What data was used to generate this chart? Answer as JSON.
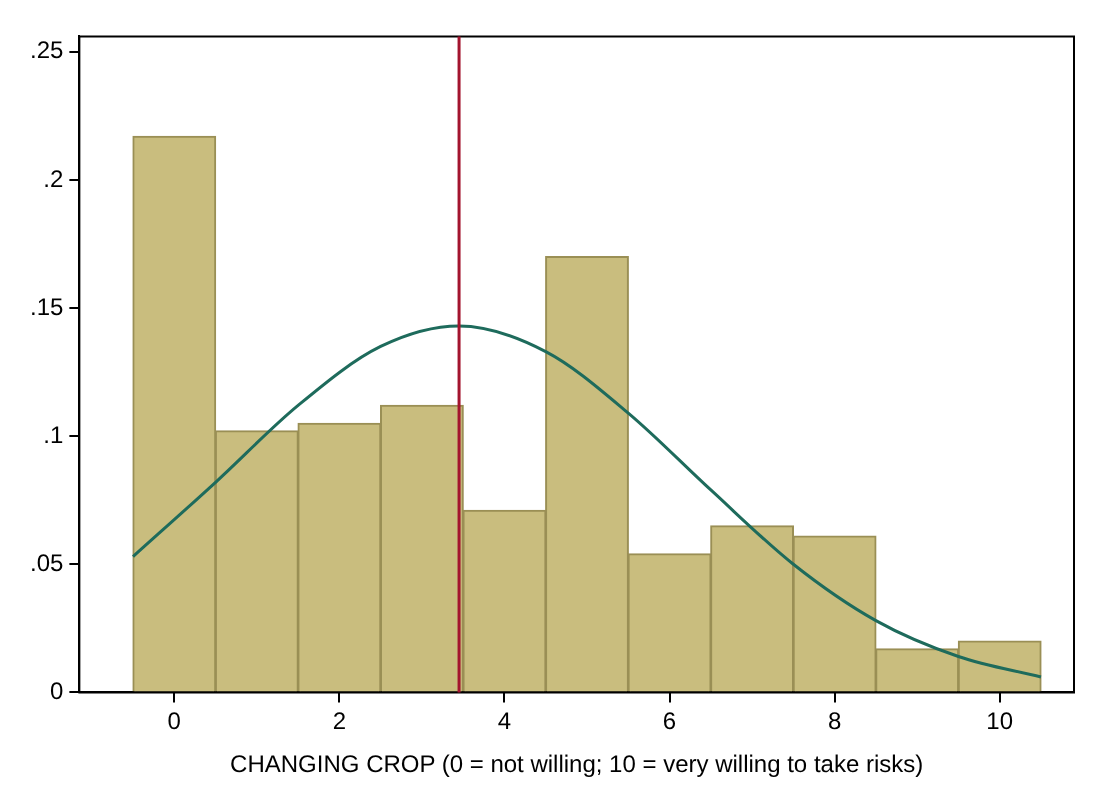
{
  "chart_data": {
    "type": "histogram",
    "xlabel": "CHANGING CROP (0 = not willing; 10 = very willing to take risks)",
    "bins": [
      -0.5,
      0.5,
      1.5,
      2.5,
      3.5,
      4.5,
      5.5,
      6.5,
      7.5,
      8.5,
      9.5,
      10.5
    ],
    "values": [
      0.217,
      0.102,
      0.105,
      0.112,
      0.071,
      0.17,
      0.054,
      0.065,
      0.061,
      0.017,
      0.02
    ],
    "color": "#c9bd7e",
    "series": [
      {
        "type": "line",
        "color": "#1e6b5c",
        "x": [
          -0.5,
          0.5,
          1.5,
          2.5,
          3.45,
          4.5,
          5.5,
          6.5,
          7.5,
          8.5,
          9.5,
          10.5
        ],
        "values": [
          0.053,
          0.082,
          0.112,
          0.135,
          0.143,
          0.133,
          0.109,
          0.079,
          0.05,
          0.028,
          0.014,
          0.006
        ]
      }
    ],
    "ref_lines": [
      {
        "axis": "x",
        "value": 3.45,
        "color": "#a3142e"
      }
    ],
    "xlim": [
      -1.15,
      10.9
    ],
    "xticks": [
      0,
      2,
      4,
      6,
      8,
      10
    ],
    "ylim": [
      0,
      0.256
    ],
    "yticks": [
      {
        "value": 0,
        "label": "0"
      },
      {
        "value": 0.05,
        "label": ".05"
      },
      {
        "value": 0.1,
        "label": ".1"
      },
      {
        "value": 0.15,
        "label": ".15"
      },
      {
        "value": 0.2,
        "label": ".2"
      },
      {
        "value": 0.25,
        "label": ".25"
      }
    ]
  }
}
